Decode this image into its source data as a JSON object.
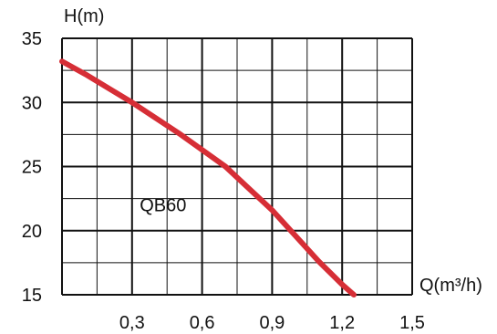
{
  "chart_data": {
    "type": "line",
    "ylabel": "H(m)",
    "xlabel": "Q(m³/h)",
    "xlim": [
      0,
      1.5
    ],
    "ylim": [
      15,
      35
    ],
    "x_ticks": [
      0.3,
      0.6,
      0.9,
      1.2,
      1.5
    ],
    "x_tick_labels": [
      "0,3",
      "0,6",
      "0,9",
      "1,2",
      "1,5"
    ],
    "y_ticks": [
      15,
      20,
      25,
      30,
      35
    ],
    "y_tick_labels": [
      "15",
      "20",
      "25",
      "30",
      "35"
    ],
    "grid": true,
    "series": [
      {
        "name": "QB60",
        "color": "#d62e36",
        "x": [
          0.0,
          0.1,
          0.2,
          0.3,
          0.4,
          0.5,
          0.6,
          0.7,
          0.8,
          0.9,
          1.0,
          1.1,
          1.2,
          1.25
        ],
        "y": [
          33.2,
          32.2,
          31.1,
          30.0,
          28.8,
          27.6,
          26.3,
          25.0,
          23.3,
          21.6,
          19.6,
          17.6,
          15.8,
          15.0
        ]
      }
    ],
    "annotations": [
      {
        "text": "QB60",
        "x": 0.45,
        "y": 21.5
      }
    ]
  }
}
